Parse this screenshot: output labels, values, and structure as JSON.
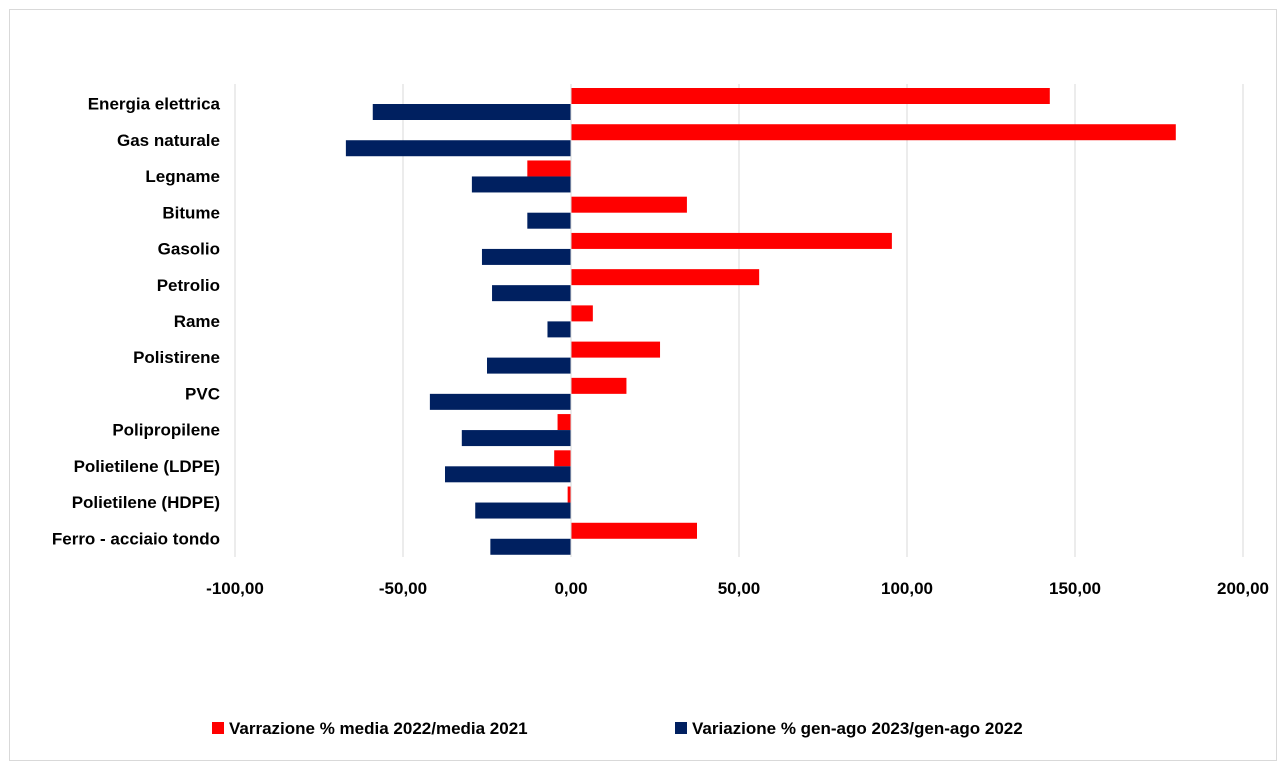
{
  "chart_data": {
    "type": "bar",
    "orientation": "horizontal",
    "categories": [
      "Energia elettrica",
      "Gas naturale",
      "Legname",
      "Bitume",
      "Gasolio",
      "Petrolio",
      "Rame",
      "Polistirene",
      "PVC",
      "Polipropilene",
      "Polietilene (LDPE)",
      "Polietilene (HDPE)",
      "Ferro - acciaio tondo"
    ],
    "series": [
      {
        "name": "Varrazione % media 2022/media 2021",
        "color": "#ff0000",
        "values": [
          142.5,
          180.0,
          -13.0,
          34.5,
          95.5,
          56.0,
          6.5,
          26.5,
          16.5,
          -4.0,
          -5.0,
          -1.0,
          37.5
        ]
      },
      {
        "name": "Variazione % gen-ago 2023/gen-ago 2022",
        "color": "#002060",
        "values": [
          -59.0,
          -67.0,
          -29.5,
          -13.0,
          -26.5,
          -23.5,
          -7.0,
          -25.0,
          -42.0,
          -32.5,
          -37.5,
          -28.5,
          -24.0
        ]
      }
    ],
    "xlim": [
      -100,
      200
    ],
    "xticks": [
      "-100,00",
      "-50,00",
      "0,00",
      "50,00",
      "100,00",
      "150,00",
      "200,00"
    ],
    "grid": "vertical",
    "legend_position": "bottom",
    "title": "",
    "xlabel": "",
    "ylabel": ""
  }
}
